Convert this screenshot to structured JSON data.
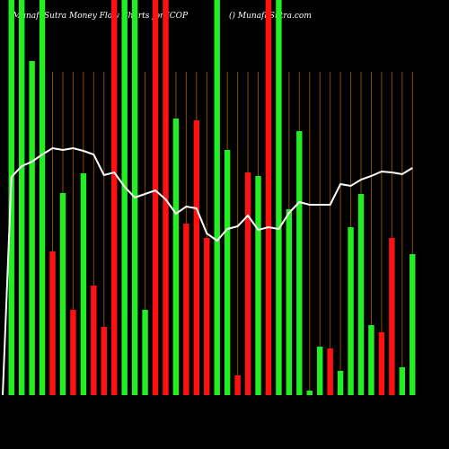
{
  "chart_data": {
    "type": "bar",
    "title": "MunafaSutra  Money Flow  Charts for ICOP",
    "subtitle": "() MunafaSutra.com",
    "ylim": [
      0,
      440
    ],
    "up_color": "#22ee22",
    "down_color": "#ff1111",
    "line_color": "#ffffff",
    "grid_color": "#8b4a00",
    "series": [
      {
        "name": "Money flow",
        "values": [
          440,
          440,
          372,
          440,
          160,
          225,
          95,
          247,
          122,
          76,
          440,
          440,
          440,
          95,
          440,
          440,
          308,
          191,
          306,
          175,
          440,
          273,
          22,
          248,
          244,
          440,
          440,
          207,
          294,
          5,
          54,
          52,
          27,
          187,
          224,
          78,
          70,
          175,
          31,
          157
        ],
        "directions": [
          "up",
          "up",
          "up",
          "up",
          "down",
          "up",
          "down",
          "up",
          "down",
          "down",
          "down",
          "up",
          "up",
          "up",
          "down",
          "down",
          "up",
          "down",
          "down",
          "down",
          "up",
          "up",
          "down",
          "down",
          "up",
          "down",
          "up",
          "up",
          "up",
          "up",
          "up",
          "down",
          "up",
          "up",
          "up",
          "up",
          "down",
          "down",
          "up",
          "up"
        ]
      },
      {
        "name": "Trend",
        "values": [
          243,
          255,
          260,
          268,
          275,
          273,
          275,
          272,
          268,
          245,
          248,
          232,
          220,
          224,
          228,
          218,
          202,
          210,
          208,
          180,
          172,
          185,
          188,
          200,
          184,
          187,
          185,
          203,
          215,
          212,
          212,
          212,
          235,
          233,
          240,
          244,
          249,
          248,
          246,
          253
        ]
      }
    ]
  }
}
